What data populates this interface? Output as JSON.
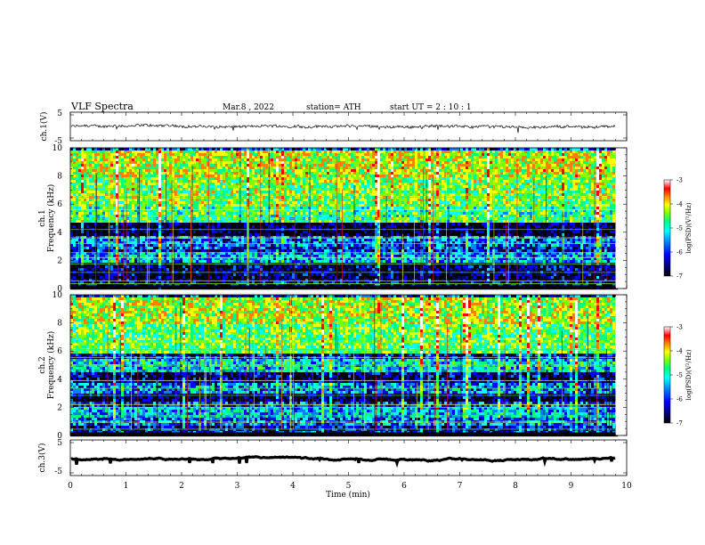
{
  "header": {
    "title": "VLF  Spectra",
    "date": "Mar.8  , 2022",
    "station": "station= ATH",
    "start": "start  UT  =   2  : 10 : 1"
  },
  "chart_data": [
    {
      "type": "line",
      "panel": "ch1-waveform",
      "ylabel": "ch.1(V)",
      "ylim": [
        -5,
        5
      ],
      "y_ticks": [
        "5",
        "-5"
      ],
      "x_range_min": [
        0,
        9.8
      ],
      "baseline": 0.0,
      "color": "#000000"
    },
    {
      "type": "heatmap",
      "panel": "ch1-spectrogram",
      "ylabel": "ch.1\nFrequency  (kHz)",
      "ylim": [
        0,
        10
      ],
      "y_ticks": [
        "0",
        "2",
        "4",
        "6",
        "8",
        "10"
      ],
      "colorbar": {
        "label": "log(PSD)(V²/Hz)",
        "ticks": [
          "-3",
          "-4",
          "-5",
          "-6",
          "-7"
        ],
        "range": [
          -7,
          -3
        ]
      }
    },
    {
      "type": "heatmap",
      "panel": "ch2-spectrogram",
      "ylabel": "ch.2\nFrequency  (kHz)",
      "ylim": [
        0,
        10
      ],
      "y_ticks": [
        "0",
        "2",
        "4",
        "6",
        "8",
        "10"
      ],
      "colorbar": {
        "label": "log(PSD)(V²/Hz)",
        "ticks": [
          "-3",
          "-4",
          "-5",
          "-6",
          "-7"
        ],
        "range": [
          -7,
          -3
        ]
      }
    },
    {
      "type": "line",
      "panel": "ch3-waveform",
      "ylabel": "ch.3(V)",
      "ylim": [
        -5,
        5
      ],
      "y_ticks": [
        "5",
        "-5"
      ],
      "x_range_min": [
        0,
        9.8
      ],
      "baseline": -0.5,
      "color": "#000000"
    }
  ],
  "x_axis": {
    "label": "Time  (min)",
    "ticks": [
      "0",
      "1",
      "2",
      "3",
      "4",
      "5",
      "6",
      "7",
      "8",
      "9",
      "10"
    ],
    "range": [
      0,
      10
    ]
  },
  "colors": {
    "colormap": [
      "#000000",
      "#00005a",
      "#0000ff",
      "#0080ff",
      "#00ffff",
      "#00ff80",
      "#80ff00",
      "#ffff00",
      "#ff8000",
      "#ff0000",
      "#ffffff"
    ]
  }
}
